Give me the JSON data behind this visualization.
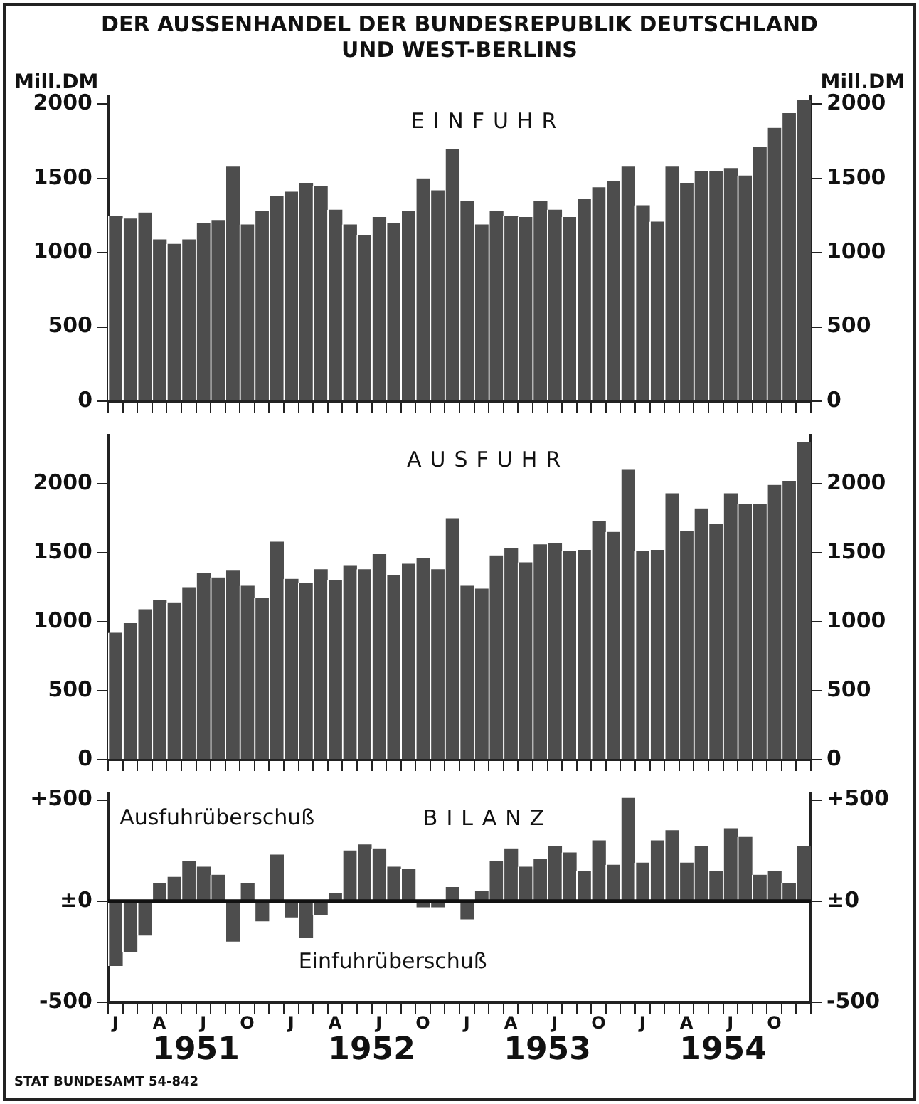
{
  "chart_data": [
    {
      "type": "bar",
      "title": "DER AUSSENHANDEL DER BUNDESREPUBLIK DEUTSCHLAND UND WEST-BERLINS",
      "subtitle": "EINFUHR",
      "ylabel": "Mill.DM",
      "y2label": "Mill.DM",
      "categories": [
        null,
        null,
        null,
        null,
        null,
        null,
        null,
        null,
        null,
        null,
        null,
        null,
        null,
        null,
        null,
        null,
        null,
        null,
        null,
        null,
        null,
        null,
        null,
        null,
        null,
        null,
        null,
        null,
        null,
        null,
        null,
        null,
        null,
        null,
        null,
        null,
        null,
        null,
        null,
        null,
        null,
        null,
        null,
        null,
        null,
        null,
        null,
        null
      ],
      "values": [
        1250,
        1230,
        1270,
        1090,
        1060,
        1090,
        1200,
        1220,
        1580,
        1190,
        1280,
        1380,
        1410,
        1470,
        1450,
        1290,
        1190,
        1120,
        1240,
        1200,
        1280,
        1500,
        1420,
        1700,
        1350,
        1190,
        1280,
        1250,
        1240,
        1350,
        1290,
        1240,
        1360,
        1440,
        1480,
        1580,
        1320,
        1210,
        1580,
        1470,
        1550,
        1550,
        1570,
        1520,
        1710,
        1840,
        1940,
        2030
      ],
      "color": "#4d4d4d",
      "ylim": [
        0,
        2050
      ],
      "yticks": [
        0,
        500,
        1000,
        1500,
        2000
      ],
      "y2lim": [
        0,
        2050
      ],
      "y2ticks": [
        0,
        500,
        1000,
        1500,
        2000
      ],
      "grid": false,
      "tick_labels": "y"
    },
    {
      "type": "bar",
      "title": "AUSFUHR",
      "categories": [
        null,
        null,
        null,
        null,
        null,
        null,
        null,
        null,
        null,
        null,
        null,
        null,
        null,
        null,
        null,
        null,
        null,
        null,
        null,
        null,
        null,
        null,
        null,
        null,
        null,
        null,
        null,
        null,
        null,
        null,
        null,
        null,
        null,
        null,
        null,
        null,
        null,
        null,
        null,
        null,
        null,
        null,
        null,
        null,
        null,
        null,
        null,
        null
      ],
      "values": [
        920,
        990,
        1090,
        1160,
        1140,
        1250,
        1350,
        1320,
        1370,
        1260,
        1170,
        1580,
        1310,
        1280,
        1380,
        1300,
        1410,
        1380,
        1490,
        1340,
        1420,
        1460,
        1380,
        1750,
        1260,
        1240,
        1480,
        1530,
        1430,
        1560,
        1570,
        1510,
        1520,
        1730,
        1650,
        2100,
        1510,
        1520,
        1930,
        1660,
        1820,
        1710,
        1930,
        1850,
        1850,
        1990,
        2020,
        2300
      ],
      "color": "#4d4d4d",
      "ylim": [
        0,
        2350
      ],
      "yticks": [
        0,
        500,
        1000,
        1500,
        2000
      ],
      "y2lim": [
        0,
        2350
      ],
      "y2ticks": [
        0,
        500,
        1000,
        1500,
        2000
      ],
      "grid": false,
      "tick_labels": "y"
    },
    {
      "type": "bar",
      "title": "BILANZ",
      "categories": [
        "J",
        null,
        null,
        "A",
        null,
        null,
        "J",
        null,
        null,
        "O",
        null,
        null,
        "J",
        null,
        null,
        "A",
        null,
        null,
        "J",
        null,
        null,
        "O",
        null,
        null,
        "J",
        null,
        null,
        "A",
        null,
        null,
        "J",
        null,
        null,
        "O",
        null,
        null,
        "J",
        null,
        null,
        "A",
        null,
        null,
        "J",
        null,
        null,
        "O",
        null,
        null
      ],
      "values": [
        -320,
        -250,
        -170,
        90,
        120,
        200,
        170,
        130,
        -200,
        90,
        -100,
        230,
        -80,
        -180,
        -70,
        40,
        250,
        280,
        260,
        170,
        160,
        -30,
        -30,
        70,
        -90,
        50,
        200,
        260,
        170,
        210,
        270,
        240,
        150,
        300,
        180,
        510,
        190,
        300,
        350,
        190,
        270,
        150,
        360,
        320,
        130,
        150,
        90,
        270
      ],
      "color": "#4d4d4d",
      "ylim": [
        -500,
        530
      ],
      "yticks": [
        {
          "value": -500,
          "label": "-500"
        },
        {
          "value": 0,
          "label": "±0"
        },
        {
          "value": 500,
          "label": "+500"
        }
      ],
      "y2lim": [
        -500,
        530
      ],
      "y2ticks": [
        {
          "value": -500,
          "label": "-500"
        },
        {
          "value": 0,
          "label": "±0"
        },
        {
          "value": 500,
          "label": "+500"
        }
      ],
      "grid": false,
      "ref_lines": [
        {
          "axis": "y",
          "value": 0
        }
      ],
      "annotations": [
        "Ausfuhrüberschuß",
        "Einfuhrüberschuß",
        "1951",
        "1952",
        "1953",
        "1954",
        "STAT BUNDESAMT 54-842"
      ]
    }
  ]
}
